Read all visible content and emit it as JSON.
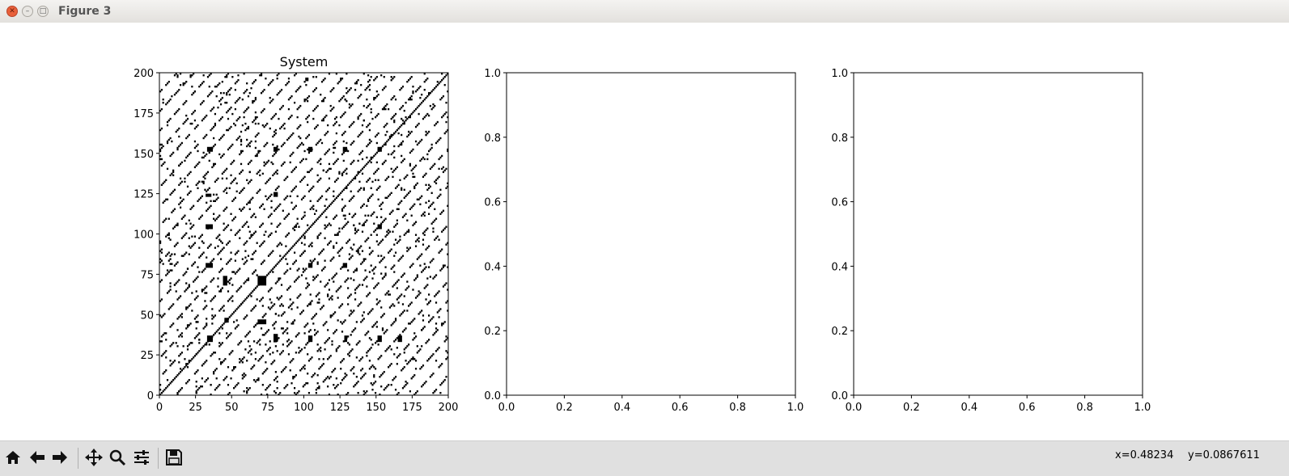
{
  "window": {
    "title": "Figure 3"
  },
  "toolbar": {
    "buttons": [
      {
        "name": "home-icon"
      },
      {
        "name": "back-arrow-icon"
      },
      {
        "name": "forward-arrow-icon"
      },
      {
        "name": "pan-icon"
      },
      {
        "name": "zoom-icon"
      },
      {
        "name": "configure-subplots-icon"
      },
      {
        "name": "save-icon"
      }
    ],
    "x_readout": "x=0.48234",
    "y_readout": "y=0.0867611"
  },
  "chart_data": [
    {
      "type": "heatmap",
      "title": "System",
      "xlabel": "",
      "ylabel": "",
      "xlim": [
        0,
        200
      ],
      "ylim": [
        0,
        200
      ],
      "xticks": [
        "0",
        "25",
        "50",
        "75",
        "100",
        "125",
        "150",
        "175",
        "200"
      ],
      "yticks": [
        "0",
        "25",
        "50",
        "75",
        "100",
        "125",
        "150",
        "175",
        "200"
      ],
      "colormap": [
        "#ffffff",
        "#000000"
      ],
      "description_values": "binary recurrence matrix 200x200 with main diagonal and parallel diagonal streaks",
      "blocks": [
        {
          "x": 33,
          "y": 33,
          "w": 4,
          "h": 4
        },
        {
          "x": 68,
          "y": 68,
          "w": 6,
          "h": 6
        },
        {
          "x": 45,
          "y": 45,
          "w": 3,
          "h": 3
        },
        {
          "x": 33,
          "y": 151,
          "w": 4,
          "h": 3
        },
        {
          "x": 151,
          "y": 33,
          "w": 3,
          "h": 4
        },
        {
          "x": 68,
          "y": 44,
          "w": 6,
          "h": 3
        },
        {
          "x": 44,
          "y": 68,
          "w": 3,
          "h": 6
        },
        {
          "x": 32,
          "y": 79,
          "w": 5,
          "h": 3
        },
        {
          "x": 79,
          "y": 33,
          "w": 3,
          "h": 5
        },
        {
          "x": 32,
          "y": 103,
          "w": 5,
          "h": 3
        },
        {
          "x": 103,
          "y": 79,
          "w": 3,
          "h": 3
        },
        {
          "x": 79,
          "y": 151,
          "w": 3,
          "h": 3
        },
        {
          "x": 151,
          "y": 151,
          "w": 3,
          "h": 3
        },
        {
          "x": 103,
          "y": 151,
          "w": 3,
          "h": 3
        },
        {
          "x": 151,
          "y": 103,
          "w": 3,
          "h": 3
        },
        {
          "x": 127,
          "y": 151,
          "w": 3,
          "h": 3
        },
        {
          "x": 32,
          "y": 123,
          "w": 4,
          "h": 2
        },
        {
          "x": 127,
          "y": 79,
          "w": 3,
          "h": 3
        },
        {
          "x": 103,
          "y": 33,
          "w": 3,
          "h": 4
        },
        {
          "x": 128,
          "y": 33,
          "w": 2,
          "h": 4
        },
        {
          "x": 165,
          "y": 33,
          "w": 3,
          "h": 4
        },
        {
          "x": 79,
          "y": 123,
          "w": 3,
          "h": 3
        }
      ],
      "diagonal_offsets": [
        0,
        11,
        -11,
        23,
        -23,
        35,
        -35,
        47,
        -47,
        58,
        -58,
        70,
        -70,
        82,
        -82,
        94,
        -94,
        105,
        -105,
        117,
        -117,
        129,
        -129,
        141,
        -141,
        152,
        -152,
        164,
        -164,
        176,
        -176,
        188,
        -188
      ]
    },
    {
      "type": "scatter",
      "title": "",
      "xlim": [
        0.0,
        1.0
      ],
      "ylim": [
        0.0,
        1.0
      ],
      "xticks": [
        "0.0",
        "0.2",
        "0.4",
        "0.6",
        "0.8",
        "1.0"
      ],
      "yticks": [
        "0.0",
        "0.2",
        "0.4",
        "0.6",
        "0.8",
        "1.0"
      ],
      "series": []
    },
    {
      "type": "scatter",
      "title": "",
      "xlim": [
        0.0,
        1.0
      ],
      "ylim": [
        0.0,
        1.0
      ],
      "xticks": [
        "0.0",
        "0.2",
        "0.4",
        "0.6",
        "0.8",
        "1.0"
      ],
      "yticks": [
        "0.0",
        "0.2",
        "0.4",
        "0.6",
        "0.8",
        "1.0"
      ],
      "series": []
    }
  ]
}
